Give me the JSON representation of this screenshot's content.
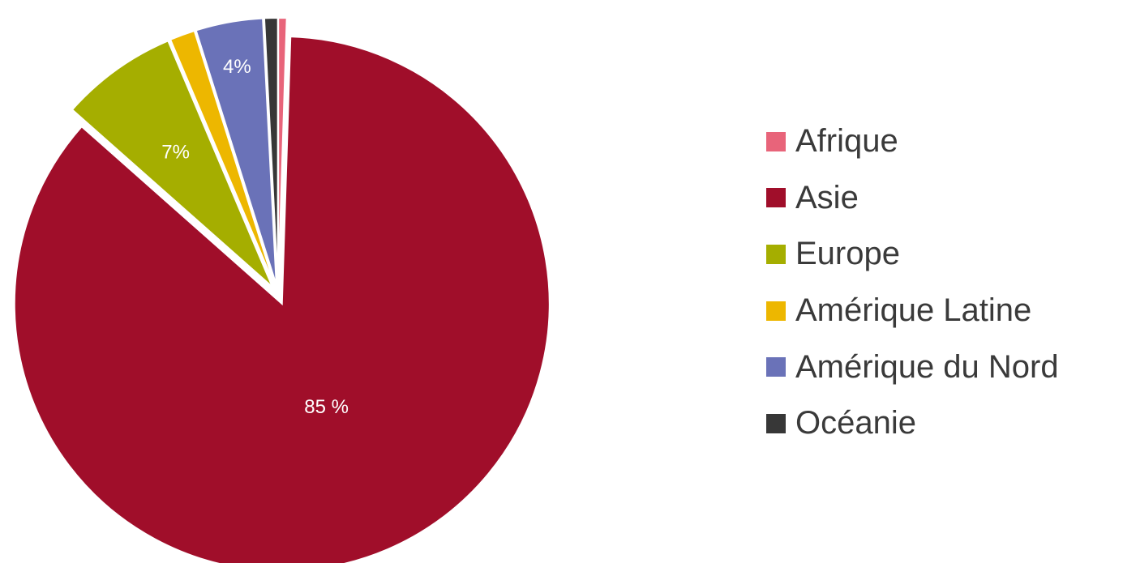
{
  "chart_data": {
    "type": "pie",
    "title": "",
    "categories": [
      "Afrique",
      "Asie",
      "Europe",
      "Amérique Latine",
      "Amérique du Nord",
      "Océanie"
    ],
    "values": [
      0.5,
      85,
      7,
      1.5,
      4,
      0.8
    ],
    "colors": [
      "#e8647a",
      "#a00e2a",
      "#a5ae00",
      "#edb700",
      "#6a72b8",
      "#373737"
    ],
    "data_labels": [
      "",
      "85 %",
      "7%",
      "",
      "4%",
      ""
    ],
    "exploded": [
      true,
      true,
      true,
      true,
      true,
      true
    ],
    "start_angle_deg": 0,
    "direction": "clockwise",
    "legend_position": "right"
  }
}
